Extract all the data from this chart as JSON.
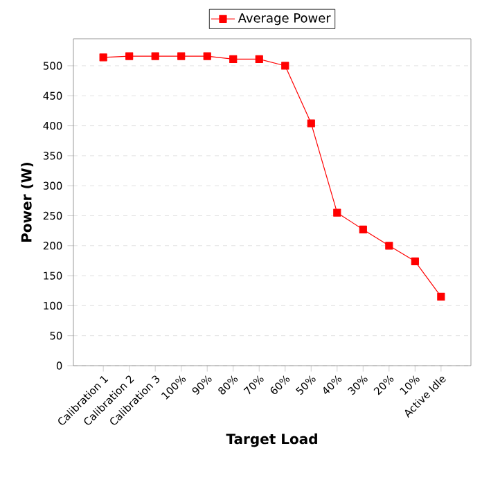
{
  "chart_data": {
    "type": "line",
    "xlabel": "Target Load",
    "ylabel": "Power (W)",
    "categories": [
      "Calibration 1",
      "Calibration 2",
      "Calibration 3",
      "100%",
      "90%",
      "80%",
      "70%",
      "60%",
      "50%",
      "40%",
      "30%",
      "20%",
      "10%",
      "Active Idle"
    ],
    "series": [
      {
        "name": "Average Power",
        "color": "#ff0000",
        "values": [
          514,
          516,
          516,
          516,
          516,
          511,
          511,
          500,
          404,
          255,
          227,
          200,
          174,
          115
        ]
      }
    ],
    "ylim": [
      0,
      545
    ],
    "yticks": [
      0,
      50,
      100,
      150,
      200,
      250,
      300,
      350,
      400,
      450,
      500
    ],
    "grid": "y",
    "legend": "top",
    "marker": "square",
    "line_style": "solid"
  }
}
